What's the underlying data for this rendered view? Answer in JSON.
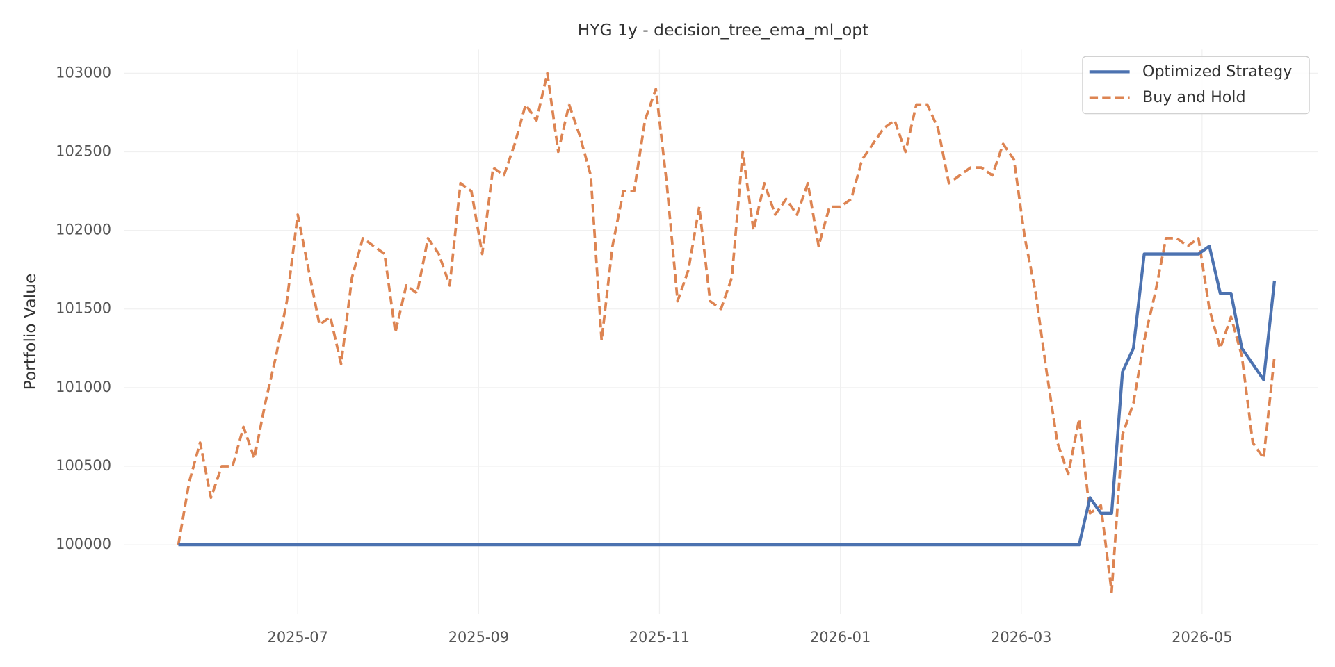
{
  "chart_data": {
    "type": "line",
    "title": "HYG 1y - decision_tree_ema_ml_opt",
    "ylabel": "Portfolio Value",
    "x": [
      2025.39,
      2025.4,
      2025.41,
      2025.42,
      2025.43,
      2025.44,
      2025.45,
      2025.46,
      2025.47,
      2025.48,
      2025.49,
      2025.5,
      2025.51,
      2025.52,
      2025.53,
      2025.54,
      2025.55,
      2025.56,
      2025.57,
      2025.58,
      2025.59,
      2025.6,
      2025.61,
      2025.62,
      2025.63,
      2025.64,
      2025.65,
      2025.66,
      2025.67,
      2025.68,
      2025.69,
      2025.7,
      2025.71,
      2025.72,
      2025.73,
      2025.74,
      2025.75,
      2025.76,
      2025.77,
      2025.78,
      2025.79,
      2025.8,
      2025.81,
      2025.82,
      2025.83,
      2025.84,
      2025.85,
      2025.86,
      2025.87,
      2025.88,
      2025.89,
      2025.9,
      2025.91,
      2025.92,
      2025.93,
      2025.94,
      2025.95,
      2025.96,
      2025.97,
      2025.98,
      2025.99,
      2026.0,
      2026.01,
      2026.02,
      2026.03,
      2026.04,
      2026.05,
      2026.06,
      2026.07,
      2026.08,
      2026.09,
      2026.1,
      2026.11,
      2026.12,
      2026.13,
      2026.14,
      2026.15,
      2026.16,
      2026.17,
      2026.18,
      2026.19,
      2026.2,
      2026.21,
      2026.22,
      2026.23,
      2026.24,
      2026.25,
      2026.26,
      2026.27,
      2026.28,
      2026.29,
      2026.3,
      2026.31,
      2026.32,
      2026.33,
      2026.34,
      2026.35,
      2026.36,
      2026.37,
      2026.38,
      2026.39,
      2026.4
    ],
    "series": [
      {
        "name": "Optimized Strategy",
        "color": "#4c72b0",
        "dash": false,
        "values": [
          100000,
          100000,
          100000,
          100000,
          100000,
          100000,
          100000,
          100000,
          100000,
          100000,
          100000,
          100000,
          100000,
          100000,
          100000,
          100000,
          100000,
          100000,
          100000,
          100000,
          100000,
          100000,
          100000,
          100000,
          100000,
          100000,
          100000,
          100000,
          100000,
          100000,
          100000,
          100000,
          100000,
          100000,
          100000,
          100000,
          100000,
          100000,
          100000,
          100000,
          100000,
          100000,
          100000,
          100000,
          100000,
          100000,
          100000,
          100000,
          100000,
          100000,
          100000,
          100000,
          100000,
          100000,
          100000,
          100000,
          100000,
          100000,
          100000,
          100000,
          100000,
          100000,
          100000,
          100000,
          100000,
          100000,
          100000,
          100000,
          100000,
          100000,
          100000,
          100000,
          100000,
          100000,
          100000,
          100000,
          100000,
          100000,
          100000,
          100000,
          100000,
          100000,
          100000,
          100000,
          100300,
          100200,
          100200,
          101100,
          101250,
          101850,
          101850,
          101850,
          101850,
          101850,
          101850,
          101900,
          101600,
          101600,
          101250,
          101150,
          101050,
          101680
        ]
      },
      {
        "name": "Buy and Hold",
        "color": "#dd8452",
        "dash": true,
        "values": [
          100000,
          100400,
          100650,
          100300,
          100500,
          100500,
          100750,
          100550,
          100900,
          101200,
          101550,
          102100,
          101750,
          101400,
          101450,
          101150,
          101700,
          101950,
          101900,
          101850,
          101350,
          101650,
          101600,
          101950,
          101850,
          101650,
          102300,
          102250,
          101850,
          102400,
          102350,
          102550,
          102800,
          102700,
          103000,
          102500,
          102800,
          102600,
          102350,
          101300,
          101900,
          102250,
          102250,
          102700,
          102900,
          102300,
          101550,
          101750,
          102150,
          101550,
          101500,
          101700,
          102500,
          102000,
          102300,
          102100,
          102200,
          102100,
          102300,
          101900,
          102150,
          102150,
          102200,
          102450,
          102550,
          102650,
          102700,
          102500,
          102800,
          102800,
          102650,
          102300,
          102350,
          102400,
          102400,
          102350,
          102550,
          102450,
          101950,
          101600,
          101100,
          100650,
          100450,
          100800,
          100200,
          100250,
          99700,
          100700,
          100900,
          101300,
          101600,
          101950,
          101950,
          101900,
          101950,
          101500,
          101250,
          101450,
          101200,
          100650,
          100550,
          101200
        ]
      }
    ],
    "xlim": [
      2025.34,
      2026.44
    ],
    "xticks": [
      {
        "value": 2025.5,
        "label": "2025-07"
      },
      {
        "value": 2025.6667,
        "label": "2025-09"
      },
      {
        "value": 2025.8333,
        "label": "2025-11"
      },
      {
        "value": 2026.0,
        "label": "2026-01"
      },
      {
        "value": 2026.1667,
        "label": "2026-03"
      },
      {
        "value": 2026.3333,
        "label": "2026-05"
      }
    ],
    "ylim": [
      99560,
      103150
    ],
    "yticks": [
      100000,
      100500,
      101000,
      101500,
      102000,
      102500,
      103000
    ],
    "grid": true,
    "legend": "upper right"
  }
}
